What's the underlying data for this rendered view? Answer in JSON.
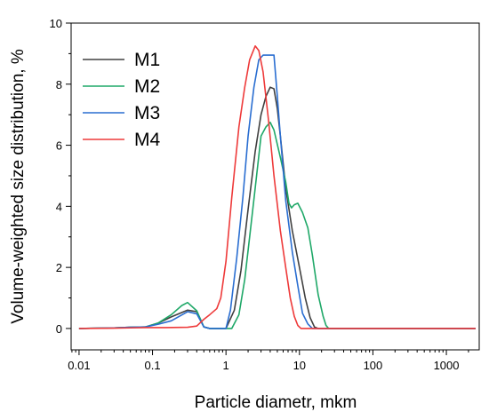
{
  "chart_data": {
    "type": "line",
    "xlabel": "Particle diametr, mkm",
    "ylabel": "Volume-weighted size distribution, %",
    "xscale": "log",
    "xlim": [
      0.0078,
      2800
    ],
    "ylim": [
      -0.7,
      10
    ],
    "xticks": [
      0.01,
      0.1,
      1,
      10,
      100,
      1000
    ],
    "xtick_labels": [
      "0.01",
      "0.1",
      "1",
      "10",
      "100",
      "1000"
    ],
    "yticks": [
      0,
      2,
      4,
      6,
      8,
      10
    ],
    "ytick_labels": [
      "0",
      "2",
      "4",
      "6",
      "8",
      "10"
    ],
    "grid": false,
    "legend_position": "top-left",
    "series": [
      {
        "name": "M1",
        "color": "#404040",
        "points": [
          [
            0.01,
            0
          ],
          [
            0.03,
            0.02
          ],
          [
            0.05,
            0.04
          ],
          [
            0.08,
            0.05
          ],
          [
            0.12,
            0.18
          ],
          [
            0.18,
            0.38
          ],
          [
            0.3,
            0.6
          ],
          [
            0.4,
            0.55
          ],
          [
            0.5,
            0.05
          ],
          [
            0.6,
            0
          ],
          [
            1.0,
            0
          ],
          [
            1.3,
            0.6
          ],
          [
            1.6,
            1.9
          ],
          [
            2.0,
            3.9
          ],
          [
            2.5,
            5.8
          ],
          [
            3.0,
            7.0
          ],
          [
            3.5,
            7.6
          ],
          [
            4.0,
            7.9
          ],
          [
            4.5,
            7.85
          ],
          [
            5.0,
            7.2
          ],
          [
            5.5,
            6.3
          ],
          [
            6.5,
            4.6
          ],
          [
            8.0,
            3.2
          ],
          [
            10.0,
            2.0
          ],
          [
            12.0,
            1.0
          ],
          [
            14.0,
            0.35
          ],
          [
            16.0,
            0.05
          ],
          [
            18,
            0
          ],
          [
            2500,
            0
          ]
        ]
      },
      {
        "name": "M2",
        "color": "#1fa868",
        "points": [
          [
            0.01,
            0
          ],
          [
            0.03,
            0.02
          ],
          [
            0.05,
            0.04
          ],
          [
            0.08,
            0.05
          ],
          [
            0.12,
            0.18
          ],
          [
            0.18,
            0.45
          ],
          [
            0.25,
            0.75
          ],
          [
            0.3,
            0.85
          ],
          [
            0.4,
            0.58
          ],
          [
            0.5,
            0.05
          ],
          [
            0.6,
            0
          ],
          [
            1.2,
            0
          ],
          [
            1.5,
            0.45
          ],
          [
            1.8,
            1.6
          ],
          [
            2.1,
            3.0
          ],
          [
            2.5,
            4.6
          ],
          [
            3.0,
            6.3
          ],
          [
            3.5,
            6.6
          ],
          [
            4.0,
            6.75
          ],
          [
            4.5,
            6.5
          ],
          [
            5.5,
            5.6
          ],
          [
            6.5,
            4.8
          ],
          [
            7.2,
            4.1
          ],
          [
            7.8,
            3.95
          ],
          [
            8.5,
            4.05
          ],
          [
            9.5,
            4.1
          ],
          [
            11.0,
            3.8
          ],
          [
            13.0,
            3.3
          ],
          [
            15.0,
            2.4
          ],
          [
            18.0,
            1.1
          ],
          [
            21.0,
            0.4
          ],
          [
            23.0,
            0.1
          ],
          [
            25.0,
            0
          ],
          [
            2500,
            0
          ]
        ]
      },
      {
        "name": "M3",
        "color": "#2a6ed1",
        "points": [
          [
            0.01,
            0
          ],
          [
            0.03,
            0.02
          ],
          [
            0.05,
            0.04
          ],
          [
            0.08,
            0.05
          ],
          [
            0.12,
            0.14
          ],
          [
            0.18,
            0.25
          ],
          [
            0.3,
            0.55
          ],
          [
            0.4,
            0.48
          ],
          [
            0.5,
            0.05
          ],
          [
            0.6,
            0
          ],
          [
            1.0,
            0
          ],
          [
            1.15,
            0.6
          ],
          [
            1.4,
            2.3
          ],
          [
            1.7,
            4.3
          ],
          [
            2.0,
            6.3
          ],
          [
            2.4,
            7.9
          ],
          [
            2.8,
            8.8
          ],
          [
            3.2,
            8.95
          ],
          [
            4.5,
            8.95
          ],
          [
            5.0,
            7.6
          ],
          [
            5.5,
            6.3
          ],
          [
            6.5,
            4.2
          ],
          [
            8.0,
            2.5
          ],
          [
            9.5,
            1.4
          ],
          [
            11.0,
            0.5
          ],
          [
            13.0,
            0.15
          ],
          [
            15.0,
            0
          ],
          [
            2500,
            0
          ]
        ]
      },
      {
        "name": "M4",
        "color": "#ee3a3a",
        "points": [
          [
            0.01,
            0
          ],
          [
            0.03,
            0.01
          ],
          [
            0.05,
            0.02
          ],
          [
            0.08,
            0.03
          ],
          [
            0.15,
            0.03
          ],
          [
            0.3,
            0.04
          ],
          [
            0.4,
            0.08
          ],
          [
            0.5,
            0.3
          ],
          [
            0.6,
            0.45
          ],
          [
            0.75,
            0.65
          ],
          [
            0.85,
            1.0
          ],
          [
            1.0,
            2.2
          ],
          [
            1.2,
            4.3
          ],
          [
            1.5,
            6.6
          ],
          [
            1.8,
            7.9
          ],
          [
            2.1,
            8.8
          ],
          [
            2.5,
            9.25
          ],
          [
            2.8,
            9.1
          ],
          [
            3.2,
            8.4
          ],
          [
            3.8,
            6.8
          ],
          [
            4.5,
            5.0
          ],
          [
            5.5,
            3.2
          ],
          [
            6.5,
            2.0
          ],
          [
            7.5,
            1.0
          ],
          [
            8.5,
            0.4
          ],
          [
            9.5,
            0.1
          ],
          [
            10.5,
            0
          ],
          [
            2500,
            0
          ]
        ]
      }
    ]
  }
}
